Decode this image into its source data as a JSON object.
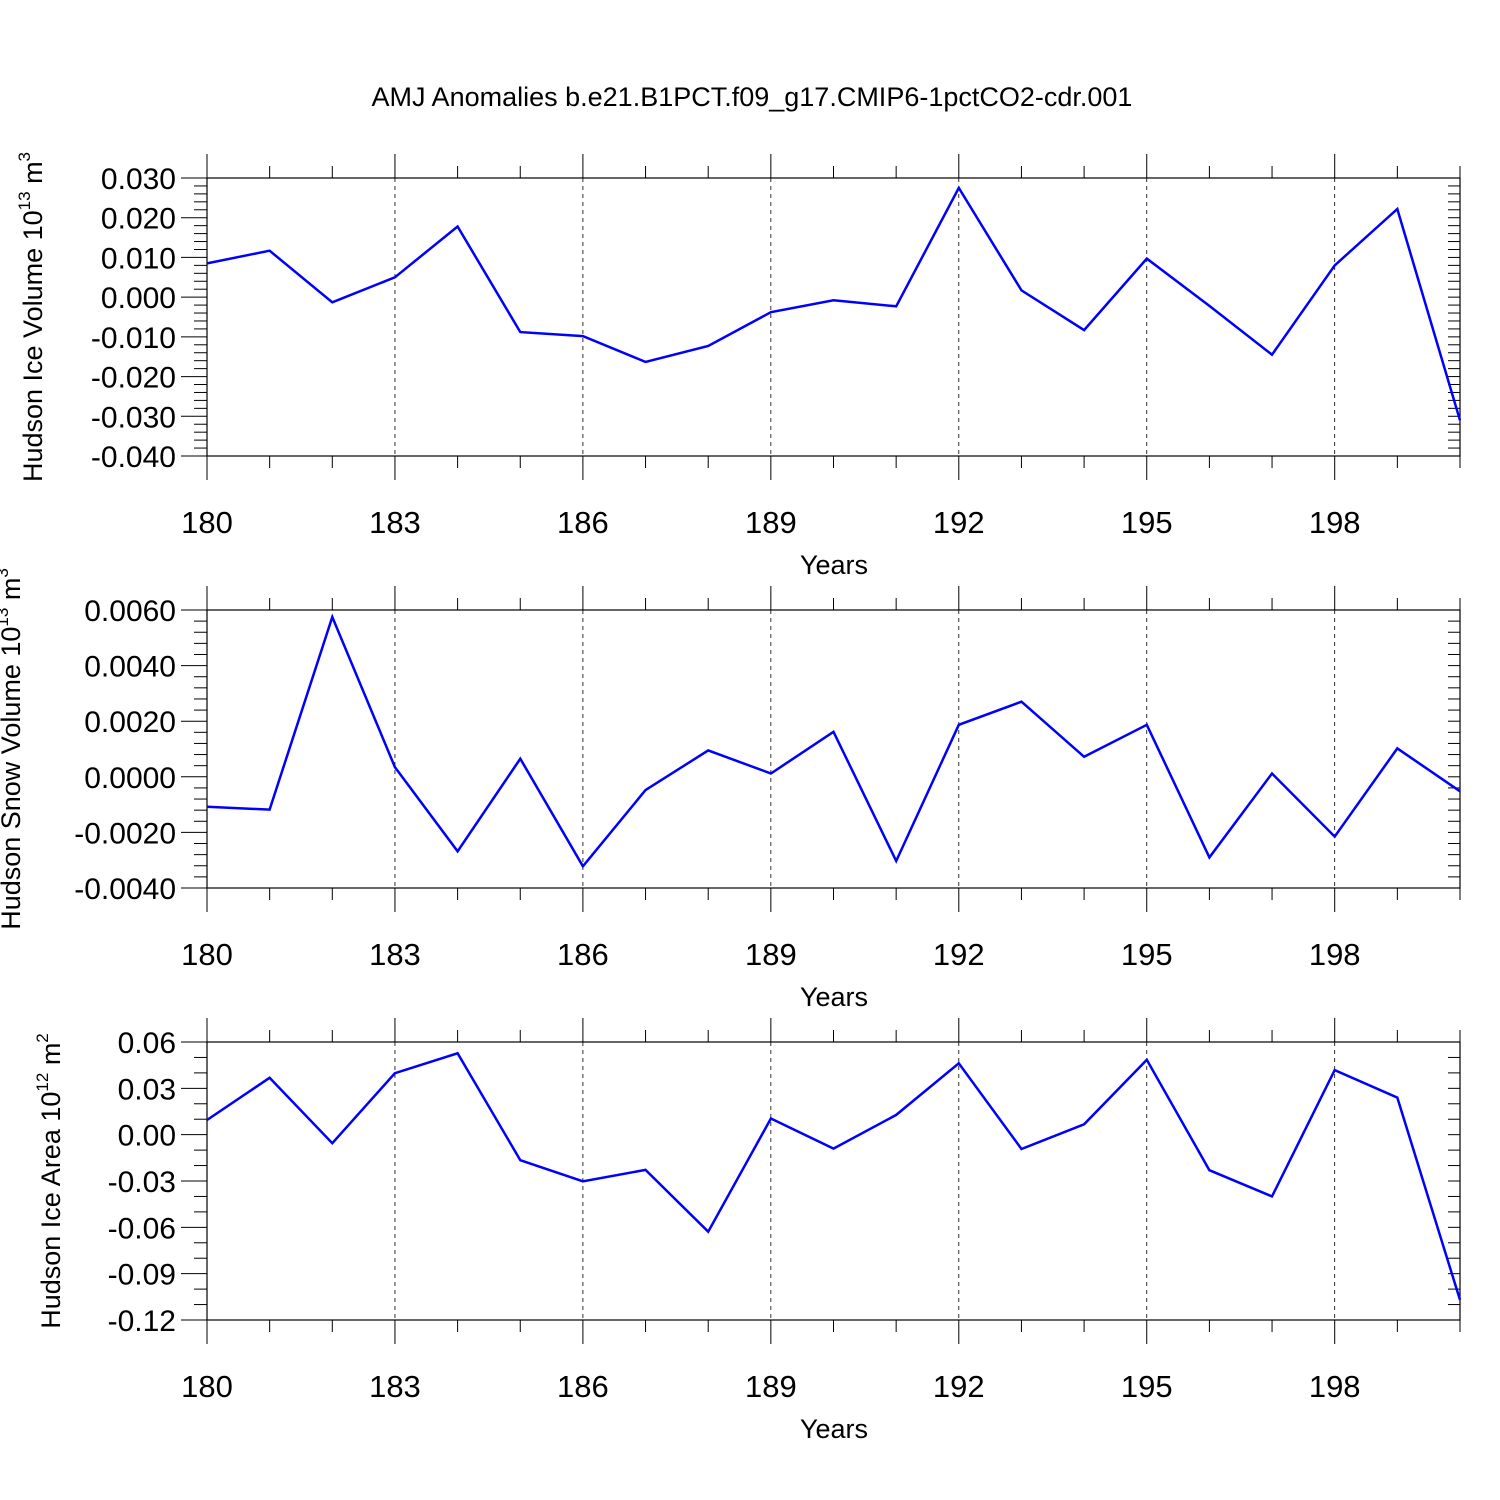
{
  "figure": {
    "title": "AMJ Anomalies b.e21.B1PCT.f09_g17.CMIP6-1pctCO2-cdr.001",
    "line_color": "#0000ff"
  },
  "chart_data": [
    {
      "type": "line",
      "xlabel": "Years",
      "ylabel": "Hudson Ice Volume 10",
      "ylabel_sup": "13",
      "ylabel_unit": "m",
      "ylabel_unit_sup": "3",
      "x": [
        180,
        181,
        182,
        183,
        184,
        185,
        186,
        187,
        188,
        189,
        190,
        191,
        192,
        193,
        194,
        195,
        196,
        197,
        198,
        199,
        200
      ],
      "values": [
        0.0085,
        0.0117,
        -0.0013,
        0.005,
        0.0178,
        -0.0088,
        -0.0098,
        -0.0163,
        -0.0123,
        -0.0038,
        -0.0008,
        -0.0023,
        0.0275,
        0.0017,
        -0.0083,
        0.0097,
        -0.0022,
        -0.0145,
        0.008,
        0.0222,
        -0.031
      ],
      "xlim": [
        180,
        200
      ],
      "ylim": [
        -0.04,
        0.03
      ],
      "xticks": [
        "180",
        "183",
        "186",
        "189",
        "192",
        "195",
        "198"
      ],
      "yticks": [
        "-0.040",
        "-0.030",
        "-0.020",
        "-0.010",
        "0.000",
        "0.010",
        "0.020",
        "0.030"
      ],
      "grid": "vertical dashed"
    },
    {
      "type": "line",
      "xlabel": "Years",
      "ylabel": "Hudson Snow Volume 10",
      "ylabel_sup": "13",
      "ylabel_unit": "m",
      "ylabel_unit_sup": "3",
      "x": [
        180,
        181,
        182,
        183,
        184,
        185,
        186,
        187,
        188,
        189,
        190,
        191,
        192,
        193,
        194,
        195,
        196,
        197,
        198,
        199,
        200
      ],
      "values": [
        -0.00108,
        -0.00118,
        0.00575,
        0.00035,
        -0.00268,
        0.00065,
        -0.00322,
        -0.00048,
        0.00095,
        0.00012,
        0.00162,
        -0.00303,
        0.00187,
        0.0027,
        0.00072,
        0.00187,
        -0.0029,
        0.00012,
        -0.00215,
        0.00102,
        -0.00052
      ],
      "xlim": [
        180,
        200
      ],
      "ylim": [
        -0.004,
        0.006
      ],
      "xticks": [
        "180",
        "183",
        "186",
        "189",
        "192",
        "195",
        "198"
      ],
      "yticks": [
        "-0.0040",
        "-0.0020",
        "0.0000",
        "0.0020",
        "0.0040",
        "0.0060"
      ],
      "grid": "vertical dashed"
    },
    {
      "type": "line",
      "xlabel": "Years",
      "ylabel": "Hudson Ice Area 10",
      "ylabel_sup": "12",
      "ylabel_unit": "m",
      "ylabel_unit_sup": "2",
      "x": [
        180,
        181,
        182,
        183,
        184,
        185,
        186,
        187,
        188,
        189,
        190,
        191,
        192,
        193,
        194,
        195,
        196,
        197,
        198,
        199,
        200
      ],
      "values": [
        0.0095,
        0.0368,
        -0.0055,
        0.0398,
        0.0527,
        -0.0165,
        -0.0302,
        -0.0228,
        -0.0628,
        0.0105,
        -0.009,
        0.0128,
        0.0462,
        -0.0093,
        0.0067,
        0.0485,
        -0.023,
        -0.04,
        0.0418,
        0.024,
        -0.107
      ],
      "xlim": [
        180,
        200
      ],
      "ylim": [
        -0.12,
        0.06
      ],
      "xticks": [
        "180",
        "183",
        "186",
        "189",
        "192",
        "195",
        "198"
      ],
      "yticks": [
        "-0.12",
        "-0.09",
        "-0.06",
        "-0.03",
        "0.00",
        "0.03",
        "0.06"
      ],
      "grid": "vertical dashed"
    }
  ]
}
